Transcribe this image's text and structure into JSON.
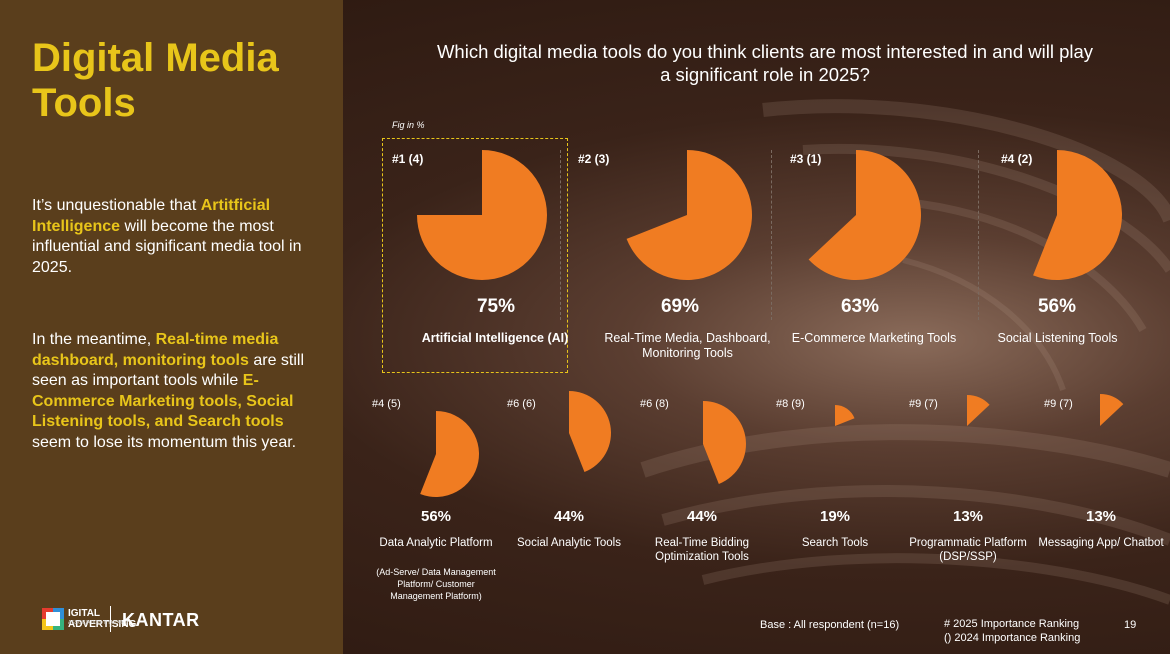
{
  "title": "Digital Media Tools",
  "paragraph1": [
    {
      "text": "It’s unquestionable that ",
      "bold": false
    },
    {
      "text": "Artitficial Intelligence",
      "bold": true
    },
    {
      "text": " will become the most influential and significant media tool in 2025.",
      "bold": false
    }
  ],
  "paragraph2": [
    {
      "text": "In the meantime, ",
      "bold": false
    },
    {
      "text": "Real-time media dashboard, monitoring tools",
      "bold": true
    },
    {
      "text": " are still seen as important tools while ",
      "bold": false
    },
    {
      "text": "E-Commerce Marketing tools, Social Listening tools, and Search tools",
      "bold": true
    },
    {
      "text": " seem to lose its momentum this year.",
      "bold": false
    }
  ],
  "question": "Which digital media tools do you think clients are most interested in and will play a significant role in 2025?",
  "fig_note": "Fig in %",
  "chart_data": {
    "type": "pie",
    "unit": "%",
    "items": [
      {
        "rank": "#1 (4)",
        "value": 75,
        "value_label": "75%",
        "label": "Artificial Intelligence (AI)",
        "sublabel": ""
      },
      {
        "rank": "#2 (3)",
        "value": 69,
        "value_label": "69%",
        "label": "Real-Time Media, Dashboard, Monitoring Tools",
        "sublabel": ""
      },
      {
        "rank": "#3 (1)",
        "value": 63,
        "value_label": "63%",
        "label": "E-Commerce Marketing Tools",
        "sublabel": ""
      },
      {
        "rank": "#4 (2)",
        "value": 56,
        "value_label": "56%",
        "label": "Social Listening Tools",
        "sublabel": ""
      },
      {
        "rank": "#4 (5)",
        "value": 56,
        "value_label": "56%",
        "label": "Data Analytic Platform",
        "sublabel": "(Ad-Serve/ Data Management Platform/ Customer Management Platform)"
      },
      {
        "rank": "#6 (6)",
        "value": 44,
        "value_label": "44%",
        "label": "Social Analytic Tools",
        "sublabel": ""
      },
      {
        "rank": "#6 (8)",
        "value": 44,
        "value_label": "44%",
        "label": "Real-Time Bidding Optimization Tools",
        "sublabel": ""
      },
      {
        "rank": "#8 (9)",
        "value": 19,
        "value_label": "19%",
        "label": "Search Tools",
        "sublabel": ""
      },
      {
        "rank": "#9 (7)",
        "value": 13,
        "value_label": "13%",
        "label": "Programmatic Platform (DSP/SSP)",
        "sublabel": ""
      },
      {
        "rank": "#9 (7)",
        "value": 13,
        "value_label": "13%",
        "label": "Messaging App/ Chatbot",
        "sublabel": ""
      }
    ],
    "highlighted_index": 0,
    "slice_color": "#f07c22"
  },
  "footer": {
    "logo_text": "IGITAL ADVERTISING",
    "logo_tag": "ASSOCIATION THAILAND",
    "kantar": "KANTAR",
    "base_note": "Base : All respondent (n=16)",
    "legend_line1": "# 2025 Importance Ranking",
    "legend_line2": "() 2024 Importance Ranking",
    "page_number": "19"
  },
  "colors": {
    "accent_yellow": "#e8c51a",
    "slice_orange": "#f07c22",
    "left_panel": "#5a3e1c"
  }
}
